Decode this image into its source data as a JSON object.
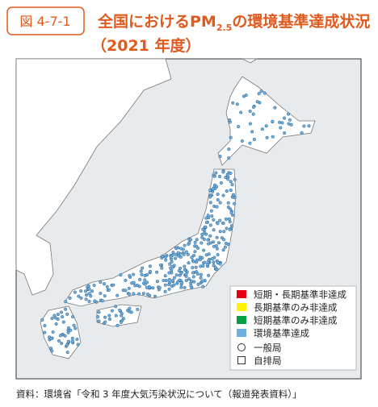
{
  "header": {
    "label": "図 4-7-1",
    "title_main": "全国におけるPM",
    "title_sub": "2.5",
    "title_after": "の環境基準達成状況",
    "subtitle": "（2021 年度）"
  },
  "legend": {
    "items": [
      {
        "label": "短期・長期基準非達成",
        "color": "#e60012"
      },
      {
        "label": "長期基準のみ非達成",
        "color": "#fff100"
      },
      {
        "label": "短期基準のみ非達成",
        "color": "#00a040"
      },
      {
        "label": "環境基準達成",
        "color": "#6fb0e0"
      }
    ],
    "symbols": [
      "一般局",
      "自排局"
    ]
  },
  "source": "資料：環境省「令和 3 年度大気汚染状況について（報道発表資料）」"
}
